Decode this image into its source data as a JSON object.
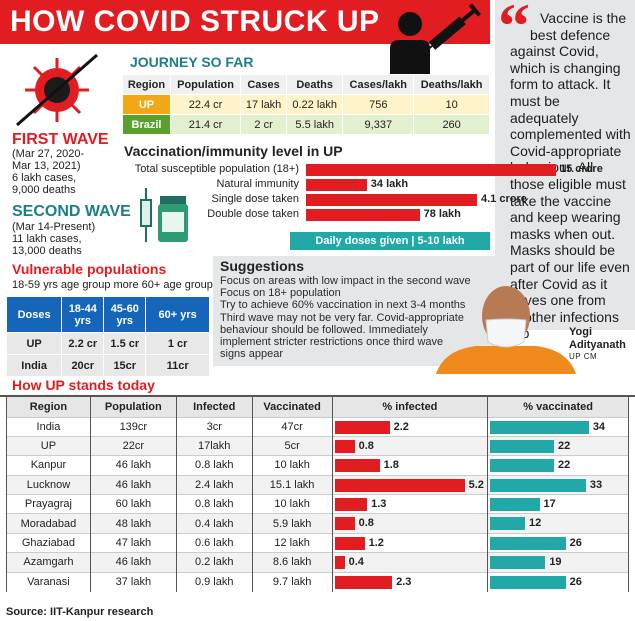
{
  "header": {
    "title": "HOW COVID STRUCK UP"
  },
  "quote": {
    "text_lines": [
      "Vaccine is the",
      "best defence",
      "against Covid,",
      "which is changing",
      "form to attack. It",
      "must be adequately",
      "complemented with",
      "Covid-appropriate",
      "behaviour. All",
      "those eligible must",
      "take the vaccine",
      "and keep wearing",
      "masks when out.",
      "Masks should be",
      "part of our life even",
      "after Covid  as it",
      "saves one from",
      "other infections",
      "too"
    ],
    "speaker_name": "Yogi Adityanath",
    "speaker_role": "UP CM"
  },
  "waves": {
    "first": {
      "title": "FIRST WAVE",
      "period": "(Mar 27, 2020-",
      "period2": "Mar 13, 2021)",
      "cases": "6 lakh cases,",
      "deaths": "9,000 deaths"
    },
    "second": {
      "title": "SECOND WAVE",
      "period": "(Mar 14-Present)",
      "cases": "11 lakh cases,",
      "deaths": "13,000 deaths"
    }
  },
  "journey": {
    "title": "JOURNEY SO FAR",
    "headers": [
      "Region",
      "Population",
      "Cases",
      "Deaths",
      "Cases/lakh",
      "Deaths/lakh"
    ],
    "rows": [
      [
        "UP",
        "22.4 cr",
        "17 lakh",
        "0.22 lakh",
        "756",
        "10"
      ],
      [
        "Brazil",
        "21.4 cr",
        "2 cr",
        "5.5 lakh",
        "9,337",
        "260"
      ]
    ]
  },
  "vaccination": {
    "title": "Vaccination/immunity level in UP",
    "items": [
      {
        "label": "Total susceptible population (18+)",
        "value": "15 crore",
        "amount_lakh": 1500
      },
      {
        "label": "Natural immunity",
        "value": "34 lakh",
        "amount_lakh": 34
      },
      {
        "label": "Single dose taken",
        "value": "4.1 crore",
        "amount_lakh": 410
      },
      {
        "label": "Double dose taken",
        "value": "78 lakh",
        "amount_lakh": 78
      }
    ],
    "daily": "Daily doses given | 5-10 lakh"
  },
  "vulnerable": {
    "title": "Vulnerable populations",
    "subtitle": "18-59 yrs age group more 60+ age group",
    "headers": [
      "Doses",
      "18-44 yrs",
      "45-60 yrs",
      "60+ yrs"
    ],
    "rows": [
      [
        "UP",
        "2.2 cr",
        "1.5 cr",
        "1 cr"
      ],
      [
        "India",
        "20cr",
        "15cr",
        "11cr"
      ]
    ]
  },
  "suggestions": {
    "title": "Suggestions",
    "lines": [
      "Focus on areas with low impact in the second wave",
      "Focus on 18+ population",
      "Try to achieve 60% vaccination in next 3-4 months",
      "Third wave may not be very far. Covid-appropriate",
      "behaviour should be followed. Immediately",
      "implement stricter restrictions once third wave",
      "signs appear"
    ]
  },
  "standing": {
    "title": "How UP stands today"
  },
  "chart_data": {
    "type": "table",
    "title": "How UP stands today",
    "columns": [
      "Region",
      "Population",
      "Infected",
      "Vaccinated",
      "% infected",
      "% vaccinated"
    ],
    "rows": [
      {
        "region": "India",
        "population": "139cr",
        "infected": "3cr",
        "vaccinated": "47cr",
        "pct_infected": 2.2,
        "pct_vaccinated": 34
      },
      {
        "region": "UP",
        "population": "22cr",
        "infected": "17lakh",
        "vaccinated": "5cr",
        "pct_infected": 0.8,
        "pct_vaccinated": 22
      },
      {
        "region": "Kanpur",
        "population": "46 lakh",
        "infected": "0.8 lakh",
        "vaccinated": "10 lakh",
        "pct_infected": 1.8,
        "pct_vaccinated": 22
      },
      {
        "region": "Lucknow",
        "population": "46 lakh",
        "infected": "2.4 lakh",
        "vaccinated": "15.1 lakh",
        "pct_infected": 5.2,
        "pct_vaccinated": 33
      },
      {
        "region": "Prayagraj",
        "population": "60 lakh",
        "infected": "0.8 lakh",
        "vaccinated": "10 lakh",
        "pct_infected": 1.3,
        "pct_vaccinated": 17
      },
      {
        "region": "Moradabad",
        "population": "48 lakh",
        "infected": "0.4 lakh",
        "vaccinated": "5.9 lakh",
        "pct_infected": 0.8,
        "pct_vaccinated": 12
      },
      {
        "region": "Ghaziabad",
        "population": "47 lakh",
        "infected": "0.6 lakh",
        "vaccinated": "12 lakh",
        "pct_infected": 1.2,
        "pct_vaccinated": 26
      },
      {
        "region": "Azamgarh",
        "population": "46 lakh",
        "infected": "0.2 lakh",
        "vaccinated": "8.6 lakh",
        "pct_infected": 0.4,
        "pct_vaccinated": 19
      },
      {
        "region": "Varanasi",
        "population": "37 lakh",
        "infected": "0.9 lakh",
        "vaccinated": "9.7 lakh",
        "pct_infected": 2.3,
        "pct_vaccinated": 26
      }
    ]
  },
  "source": "Source: IIT-Kanpur research",
  "colors": {
    "red": "#e11d22",
    "teal": "#23a8a8",
    "blue": "#1565b8",
    "orange": "#f2a814",
    "green": "#5aa02c"
  }
}
